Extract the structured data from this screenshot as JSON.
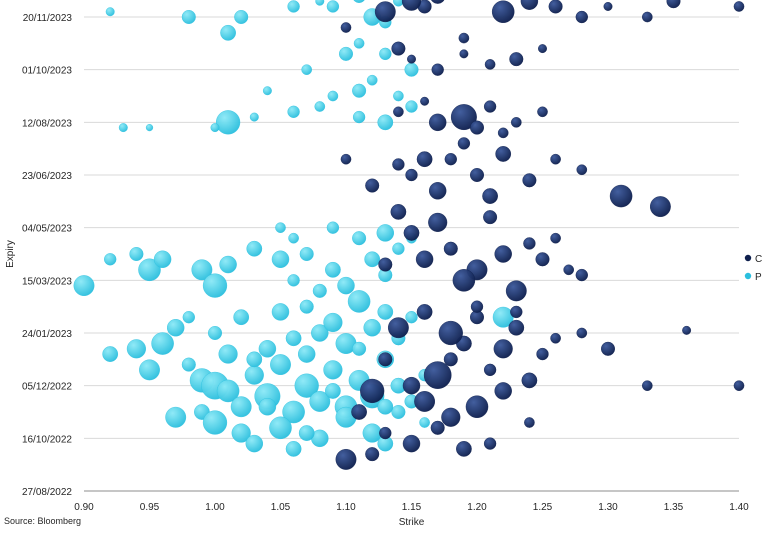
{
  "chart_data": {
    "type": "scatter",
    "subtype": "bubble",
    "title": "",
    "xlabel": "Strike",
    "ylabel": "Expiry",
    "xlim": [
      0.9,
      1.4
    ],
    "x_ticks": [
      "0.90",
      "0.95",
      "1.00",
      "1.05",
      "1.10",
      "1.15",
      "1.20",
      "1.25",
      "1.30",
      "1.35",
      "1.40"
    ],
    "y_ticks": [
      "27/08/2022",
      "16/10/2022",
      "05/12/2022",
      "24/01/2023",
      "15/03/2023",
      "04/05/2023",
      "23/06/2023",
      "12/08/2023",
      "01/10/2023",
      "20/11/2023"
    ],
    "grid": "horizontal",
    "legend_position": "right",
    "series": [
      {
        "name": "C",
        "color": "#0e1f4d",
        "points": [
          [
            1.12,
            1.9,
            14
          ],
          [
            1.13,
            2.5,
            8
          ],
          [
            1.15,
            2.0,
            10
          ],
          [
            1.16,
            1.7,
            12
          ],
          [
            1.17,
            2.2,
            16
          ],
          [
            1.18,
            1.4,
            11
          ],
          [
            1.19,
            2.8,
            9
          ],
          [
            1.2,
            1.6,
            13
          ],
          [
            1.21,
            2.3,
            7
          ],
          [
            1.22,
            1.9,
            10
          ],
          [
            1.14,
            3.1,
            12
          ],
          [
            1.16,
            3.4,
            9
          ],
          [
            1.18,
            3.0,
            14
          ],
          [
            1.2,
            3.3,
            8
          ],
          [
            1.22,
            2.7,
            11
          ],
          [
            1.24,
            2.1,
            9
          ],
          [
            1.25,
            2.6,
            7
          ],
          [
            1.15,
            0.9,
            10
          ],
          [
            1.17,
            1.2,
            8
          ],
          [
            1.19,
            0.8,
            9
          ],
          [
            1.13,
            1.1,
            7
          ],
          [
            1.11,
            1.5,
            9
          ],
          [
            1.1,
            0.6,
            12
          ],
          [
            1.12,
            0.7,
            8
          ],
          [
            1.23,
            3.4,
            7
          ],
          [
            1.26,
            2.9,
            6
          ],
          [
            1.24,
            1.3,
            6
          ],
          [
            1.21,
            0.9,
            7
          ],
          [
            1.16,
            4.4,
            10
          ],
          [
            1.18,
            4.6,
            8
          ],
          [
            1.2,
            4.2,
            12
          ],
          [
            1.15,
            4.9,
            9
          ],
          [
            1.17,
            5.1,
            11
          ],
          [
            1.19,
            4.0,
            13
          ],
          [
            1.22,
            4.5,
            10
          ],
          [
            1.24,
            4.7,
            7
          ],
          [
            1.13,
            4.3,
            8
          ],
          [
            1.14,
            5.3,
            9
          ],
          [
            1.21,
            5.2,
            8
          ],
          [
            1.23,
            3.8,
            12
          ],
          [
            1.26,
            4.8,
            6
          ],
          [
            1.28,
            4.1,
            7
          ],
          [
            1.25,
            4.4,
            8
          ],
          [
            1.16,
            6.3,
            9
          ],
          [
            1.18,
            6.3,
            7
          ],
          [
            1.2,
            6.0,
            8
          ],
          [
            1.22,
            6.4,
            9
          ],
          [
            1.24,
            5.9,
            8
          ],
          [
            1.19,
            6.6,
            7
          ],
          [
            1.15,
            6.0,
            7
          ],
          [
            1.21,
            5.6,
            9
          ],
          [
            1.17,
            5.7,
            10
          ],
          [
            1.12,
            5.8,
            8
          ],
          [
            1.14,
            6.2,
            7
          ],
          [
            1.26,
            6.3,
            6
          ],
          [
            1.28,
            6.1,
            6
          ],
          [
            1.31,
            5.6,
            13
          ],
          [
            1.34,
            5.4,
            12
          ],
          [
            1.1,
            6.3,
            6
          ],
          [
            1.27,
            4.2,
            6
          ],
          [
            1.19,
            7.1,
            15
          ],
          [
            1.17,
            7.0,
            10
          ],
          [
            1.21,
            7.3,
            7
          ],
          [
            1.23,
            7.0,
            6
          ],
          [
            1.25,
            7.2,
            6
          ],
          [
            1.2,
            6.9,
            8
          ],
          [
            1.14,
            7.2,
            6
          ],
          [
            1.16,
            7.4,
            5
          ],
          [
            1.22,
            6.8,
            6
          ],
          [
            1.17,
            8.0,
            7
          ],
          [
            1.19,
            8.3,
            5
          ],
          [
            1.21,
            8.1,
            6
          ],
          [
            1.23,
            8.2,
            8
          ],
          [
            1.25,
            8.4,
            5
          ],
          [
            1.15,
            8.2,
            5
          ],
          [
            1.17,
            9.4,
            9
          ],
          [
            1.19,
            8.6,
            6
          ],
          [
            1.22,
            9.1,
            13
          ],
          [
            1.24,
            9.3,
            10
          ],
          [
            1.26,
            9.2,
            8
          ],
          [
            1.28,
            9.0,
            7
          ],
          [
            1.2,
            9.5,
            6
          ],
          [
            1.16,
            9.2,
            8
          ],
          [
            1.18,
            9.6,
            5
          ],
          [
            1.13,
            9.1,
            12
          ],
          [
            1.15,
            9.3,
            11
          ],
          [
            1.1,
            8.8,
            6
          ],
          [
            1.14,
            8.4,
            8
          ],
          [
            1.3,
            9.2,
            5
          ],
          [
            1.35,
            9.3,
            8
          ],
          [
            1.4,
            9.2,
            6
          ],
          [
            1.33,
            9.0,
            6
          ],
          [
            1.23,
            9.65,
            5
          ],
          [
            1.25,
            9.55,
            7
          ],
          [
            1.23,
            3.1,
            9
          ],
          [
            1.2,
            3.5,
            7
          ],
          [
            1.3,
            2.7,
            8
          ],
          [
            1.28,
            3.0,
            6
          ],
          [
            1.33,
            2.0,
            6
          ],
          [
            1.4,
            2.0,
            6
          ],
          [
            1.36,
            3.05,
            5
          ],
          [
            1.18,
            2.5,
            8
          ]
        ]
      },
      {
        "name": "P",
        "color": "#2bbfde",
        "points": [
          [
            0.92,
            2.6,
            9
          ],
          [
            0.94,
            2.7,
            11
          ],
          [
            0.96,
            2.8,
            13
          ],
          [
            0.97,
            3.1,
            10
          ],
          [
            0.95,
            2.3,
            12
          ],
          [
            0.98,
            2.4,
            8
          ],
          [
            0.99,
            2.1,
            14
          ],
          [
            1.0,
            2.0,
            16
          ],
          [
            1.01,
            1.9,
            13
          ],
          [
            1.02,
            1.6,
            12
          ],
          [
            1.03,
            2.2,
            11
          ],
          [
            1.04,
            1.8,
            15
          ],
          [
            1.05,
            2.4,
            12
          ],
          [
            1.06,
            1.5,
            13
          ],
          [
            1.07,
            2.0,
            14
          ],
          [
            1.08,
            1.7,
            12
          ],
          [
            1.09,
            2.3,
            11
          ],
          [
            1.1,
            1.6,
            13
          ],
          [
            1.11,
            2.1,
            12
          ],
          [
            1.12,
            1.8,
            14
          ],
          [
            1.13,
            2.5,
            10
          ],
          [
            1.14,
            2.0,
            9
          ],
          [
            1.15,
            1.7,
            8
          ],
          [
            0.97,
            1.4,
            12
          ],
          [
            0.99,
            1.5,
            9
          ],
          [
            1.0,
            1.3,
            14
          ],
          [
            1.02,
            1.1,
            11
          ],
          [
            1.03,
            0.9,
            10
          ],
          [
            1.05,
            1.2,
            13
          ],
          [
            1.06,
            0.8,
            9
          ],
          [
            1.08,
            1.0,
            10
          ],
          [
            1.1,
            1.4,
            12
          ],
          [
            1.12,
            1.1,
            11
          ],
          [
            1.13,
            0.9,
            9
          ],
          [
            1.14,
            1.5,
            8
          ],
          [
            1.01,
            2.6,
            11
          ],
          [
            1.04,
            2.7,
            10
          ],
          [
            1.06,
            2.9,
            9
          ],
          [
            1.08,
            3.0,
            10
          ],
          [
            1.1,
            2.8,
            12
          ],
          [
            1.12,
            3.1,
            10
          ],
          [
            1.14,
            2.9,
            8
          ],
          [
            1.02,
            3.3,
            9
          ],
          [
            1.05,
            3.4,
            10
          ],
          [
            1.07,
            3.5,
            8
          ],
          [
            1.09,
            3.2,
            11
          ],
          [
            1.11,
            3.6,
            13
          ],
          [
            1.13,
            3.4,
            9
          ],
          [
            1.15,
            3.3,
            7
          ],
          [
            1.0,
            3.0,
            8
          ],
          [
            0.98,
            3.3,
            7
          ],
          [
            1.03,
            2.5,
            9
          ],
          [
            1.07,
            2.6,
            10
          ],
          [
            1.11,
            2.7,
            8
          ],
          [
            1.09,
            1.9,
            9
          ],
          [
            1.13,
            1.6,
            9
          ],
          [
            1.16,
            2.2,
            7
          ],
          [
            1.16,
            1.3,
            6
          ],
          [
            1.04,
            1.6,
            10
          ],
          [
            1.07,
            1.1,
            9
          ],
          [
            0.9,
            3.9,
            12
          ],
          [
            0.95,
            4.2,
            13
          ],
          [
            0.96,
            4.4,
            10
          ],
          [
            0.94,
            4.5,
            8
          ],
          [
            0.99,
            4.2,
            12
          ],
          [
            1.0,
            3.9,
            14
          ],
          [
            1.01,
            4.3,
            10
          ],
          [
            1.03,
            4.6,
            9
          ],
          [
            1.05,
            4.4,
            10
          ],
          [
            1.07,
            4.5,
            8
          ],
          [
            1.09,
            4.2,
            9
          ],
          [
            1.1,
            3.9,
            10
          ],
          [
            1.12,
            4.4,
            9
          ],
          [
            1.13,
            4.1,
            8
          ],
          [
            1.14,
            4.6,
            7
          ],
          [
            1.06,
            4.0,
            7
          ],
          [
            1.08,
            3.8,
            8
          ],
          [
            1.11,
            4.8,
            8
          ],
          [
            1.13,
            4.9,
            10
          ],
          [
            1.09,
            5.0,
            7
          ],
          [
            1.06,
            4.8,
            6
          ],
          [
            1.15,
            4.8,
            6
          ],
          [
            1.05,
            5.0,
            6
          ],
          [
            1.22,
            3.3,
            12
          ],
          [
            0.92,
            4.4,
            7
          ],
          [
            1.01,
            7.0,
            14
          ],
          [
            1.11,
            7.1,
            7
          ],
          [
            1.13,
            7.0,
            9
          ],
          [
            1.15,
            7.3,
            7
          ],
          [
            1.11,
            7.6,
            8
          ],
          [
            1.08,
            7.3,
            6
          ],
          [
            1.06,
            7.2,
            7
          ],
          [
            0.93,
            6.9,
            5
          ],
          [
            0.95,
            6.9,
            4
          ],
          [
            1.0,
            6.9,
            5
          ],
          [
            1.03,
            7.1,
            5
          ],
          [
            1.12,
            7.8,
            6
          ],
          [
            1.14,
            7.5,
            6
          ],
          [
            1.15,
            8.0,
            8
          ],
          [
            1.13,
            8.3,
            7
          ],
          [
            1.11,
            8.5,
            6
          ],
          [
            1.1,
            8.3,
            8
          ],
          [
            1.07,
            8.0,
            6
          ],
          [
            1.04,
            7.6,
            5
          ],
          [
            1.09,
            7.5,
            6
          ],
          [
            1.01,
            8.7,
            9
          ],
          [
            1.02,
            9.0,
            8
          ],
          [
            0.98,
            9.0,
            8
          ],
          [
            1.04,
            9.5,
            8
          ],
          [
            1.06,
            9.2,
            7
          ],
          [
            1.09,
            9.2,
            7
          ],
          [
            1.11,
            9.4,
            8
          ],
          [
            1.12,
            9.0,
            10
          ],
          [
            1.13,
            8.9,
            7
          ],
          [
            1.14,
            9.3,
            6
          ],
          [
            1.08,
            9.3,
            5
          ],
          [
            0.95,
            9.7,
            6
          ],
          [
            0.92,
            9.1,
            5
          ],
          [
            1.03,
            9.7,
            6
          ],
          [
            1.1,
            9.6,
            5
          ],
          [
            1.12,
            9.7,
            5
          ]
        ]
      }
    ]
  },
  "source_note": "Source: Bloomberg"
}
